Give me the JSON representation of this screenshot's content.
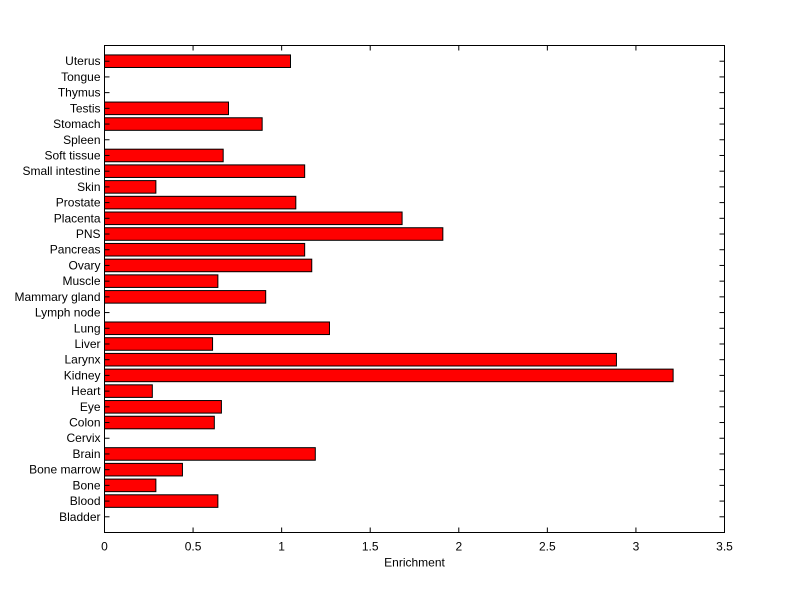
{
  "chart_data": {
    "type": "bar",
    "orientation": "horizontal",
    "title": "",
    "xlabel": "Enrichment",
    "ylabel": "",
    "xlim": [
      0,
      3.5
    ],
    "xticks": [
      "0",
      "0.5",
      "1",
      "1.5",
      "2",
      "2.5",
      "3",
      "3.5"
    ],
    "grid": false,
    "bar_color": "#ff0000",
    "categories": [
      "Bladder",
      "Blood",
      "Bone",
      "Bone marrow",
      "Brain",
      "Cervix",
      "Colon",
      "Eye",
      "Heart",
      "Kidney",
      "Larynx",
      "Liver",
      "Lung",
      "Lymph node",
      "Mammary gland",
      "Muscle",
      "Ovary",
      "Pancreas",
      "PNS",
      "Placenta",
      "Prostate",
      "Skin",
      "Small intestine",
      "Soft tissue",
      "Spleen",
      "Stomach",
      "Testis",
      "Thymus",
      "Tongue",
      "Uterus"
    ],
    "values": [
      0,
      0.64,
      0.29,
      0.44,
      1.19,
      0,
      0.62,
      0.66,
      0.27,
      3.21,
      2.89,
      0.61,
      1.27,
      0,
      0.91,
      0.64,
      1.17,
      1.13,
      1.91,
      1.68,
      1.08,
      0.29,
      1.13,
      0.67,
      0,
      0.89,
      0.7,
      0,
      0,
      1.05
    ]
  }
}
